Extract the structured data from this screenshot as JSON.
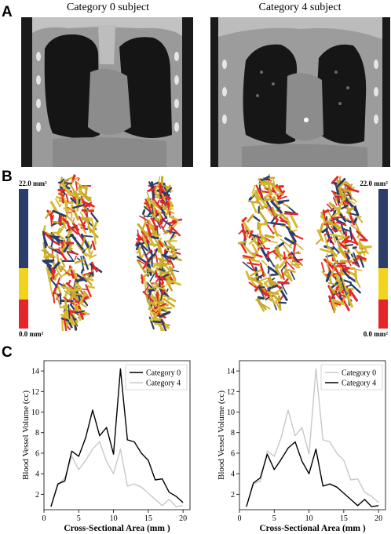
{
  "panels": {
    "A": {
      "letter": "A",
      "left_title": "Category 0 subject",
      "right_title": "Category 4 subject"
    },
    "B": {
      "letter": "B",
      "colorbar": {
        "max_label": "22.0 mm²",
        "min_label": "0.0 mm²",
        "colors": {
          "high": "#2c3d6b",
          "mid": "#f2d31d",
          "low": "#e4262a"
        }
      }
    },
    "C": {
      "letter": "C"
    }
  },
  "chart_data": [
    {
      "type": "line",
      "xlabel": "Cross-Sectional Area (mm )",
      "ylabel": "Blood Vessel Volume (cc)",
      "xlim": [
        0,
        21
      ],
      "ylim": [
        0.5,
        15
      ],
      "xticks": [
        0,
        5,
        10,
        15,
        20
      ],
      "yticks": [
        2,
        4,
        6,
        8,
        10,
        12,
        14
      ],
      "legend_position": "top-right",
      "x": [
        1,
        2,
        3,
        4,
        5,
        6,
        7,
        8,
        9,
        10,
        11,
        12,
        13,
        14,
        15,
        16,
        17,
        18,
        19,
        20
      ],
      "series": [
        {
          "name": "Category 0",
          "color": "#000000",
          "values": [
            0.8,
            3.0,
            3.3,
            6.2,
            5.7,
            7.5,
            10.2,
            7.7,
            8.5,
            5.9,
            14.2,
            7.3,
            7.1,
            6.0,
            5.3,
            3.4,
            3.5,
            2.2,
            1.8,
            1.2
          ]
        },
        {
          "name": "Category 4",
          "color": "#c8c8c8",
          "values": [
            0.8,
            2.9,
            3.6,
            5.7,
            4.4,
            5.3,
            6.4,
            7.1,
            5.2,
            4.0,
            6.4,
            2.8,
            3.0,
            2.7,
            2.1,
            1.5,
            0.9,
            1.5,
            0.8,
            0.9
          ]
        }
      ]
    },
    {
      "type": "line",
      "xlabel": "Cross-Sectional Area (mm )",
      "ylabel": "Blood Vessel Volume (cc)",
      "xlim": [
        0,
        21
      ],
      "ylim": [
        0.5,
        15
      ],
      "xticks": [
        0,
        5,
        10,
        15,
        20
      ],
      "yticks": [
        2,
        4,
        6,
        8,
        10,
        12,
        14
      ],
      "legend_position": "top-right",
      "x": [
        1,
        2,
        3,
        4,
        5,
        6,
        7,
        8,
        9,
        10,
        11,
        12,
        13,
        14,
        15,
        16,
        17,
        18,
        19,
        20
      ],
      "series": [
        {
          "name": "Category 0",
          "color": "#c8c8c8",
          "values": [
            0.8,
            3.0,
            3.3,
            6.2,
            5.7,
            7.5,
            10.2,
            7.7,
            8.5,
            5.9,
            14.2,
            7.3,
            7.1,
            6.0,
            5.3,
            3.4,
            3.5,
            2.2,
            1.8,
            1.2
          ]
        },
        {
          "name": "Category 4",
          "color": "#000000",
          "values": [
            0.8,
            3.1,
            3.6,
            5.9,
            4.4,
            5.4,
            6.5,
            7.1,
            5.2,
            4.0,
            6.4,
            2.8,
            3.0,
            2.7,
            2.1,
            1.5,
            0.9,
            1.5,
            0.8,
            0.9
          ]
        }
      ]
    }
  ]
}
